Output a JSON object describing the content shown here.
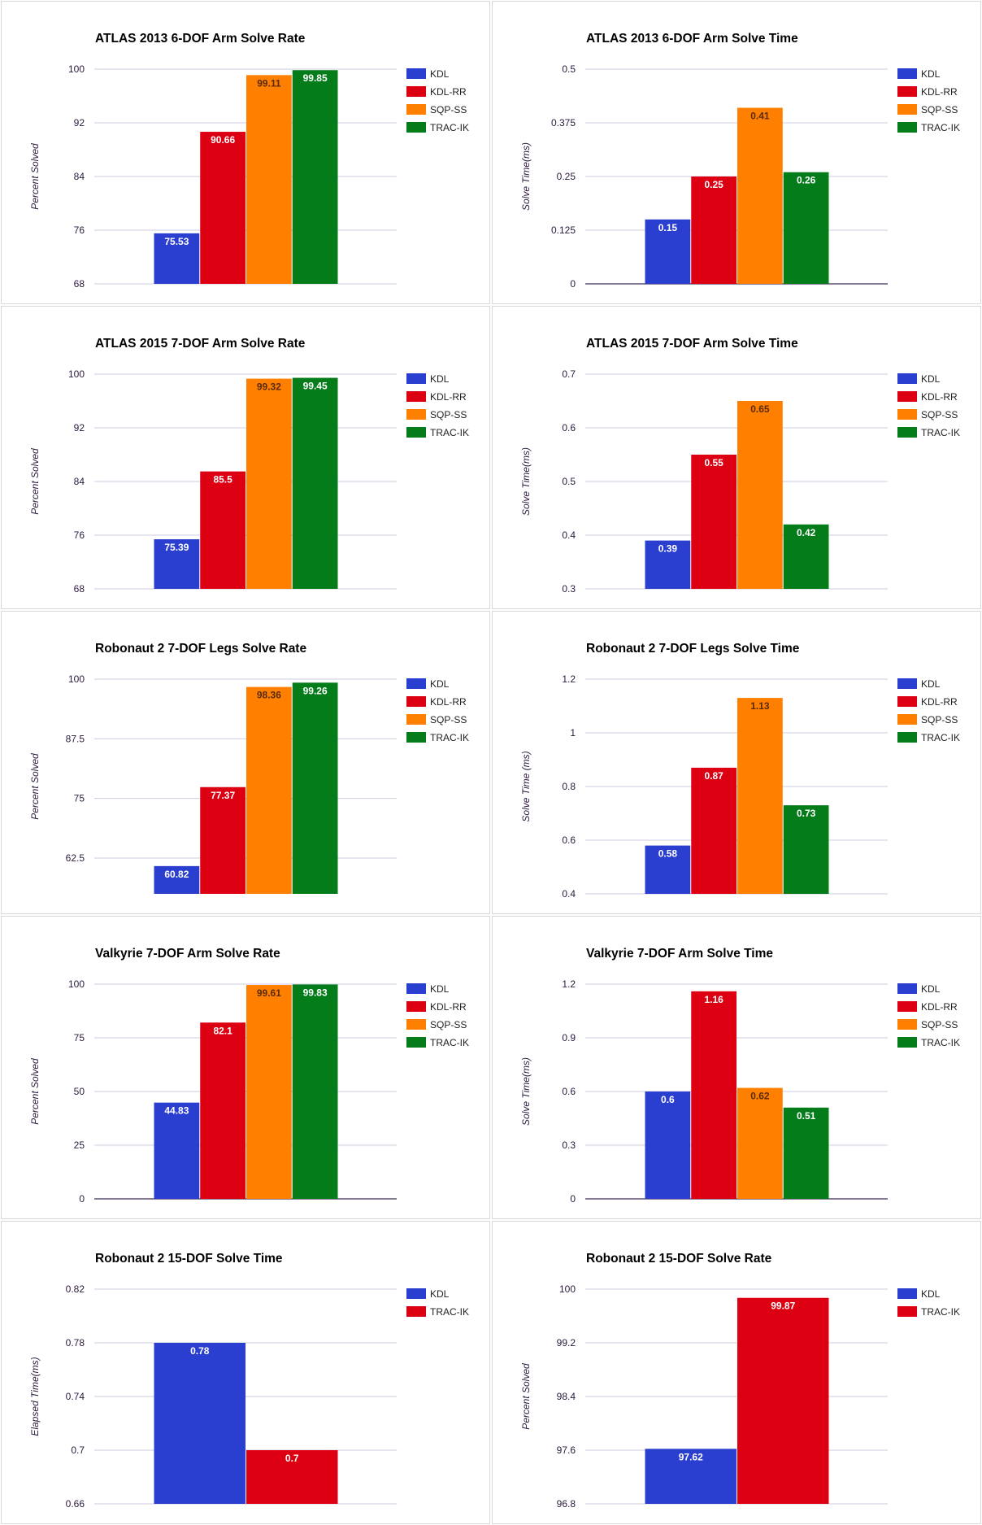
{
  "colors": {
    "KDL": "#2a3fd0",
    "KDL-RR": "#dc0012",
    "SQP-SS": "#ff8000",
    "TRAC-IK": "#057c1a",
    "grid": "#cfcbe0",
    "baseline": "#3a2a5a",
    "label_light": "#ffffff",
    "label_dark": "#5a2a0a"
  },
  "chart_data": [
    {
      "type": "bar",
      "title": "ATLAS 2013 6-DOF Arm Solve Rate",
      "xlabel": "",
      "ylabel": "Percent Solved",
      "ylim": [
        68,
        100
      ],
      "yticks": [
        "68",
        "76",
        "84",
        "92",
        "100"
      ],
      "grid": true,
      "legend": "right",
      "series": [
        {
          "name": "KDL",
          "values": [
            75.53
          ],
          "label": "75.53"
        },
        {
          "name": "KDL-RR",
          "values": [
            90.66
          ],
          "label": "90.66"
        },
        {
          "name": "SQP-SS",
          "values": [
            99.11
          ],
          "label": "99.11"
        },
        {
          "name": "TRAC-IK",
          "values": [
            99.85
          ],
          "label": "99.85"
        }
      ]
    },
    {
      "type": "bar",
      "title": "ATLAS 2013 6-DOF Arm Solve Time",
      "xlabel": "",
      "ylabel": "Solve Time(ms)",
      "ylim": [
        0,
        0.5
      ],
      "yticks": [
        "0",
        "0.125",
        "0.25",
        "0.375",
        "0.5"
      ],
      "grid": true,
      "legend": "right",
      "series": [
        {
          "name": "KDL",
          "values": [
            0.15
          ],
          "label": "0.15"
        },
        {
          "name": "KDL-RR",
          "values": [
            0.25
          ],
          "label": "0.25"
        },
        {
          "name": "SQP-SS",
          "values": [
            0.41
          ],
          "label": "0.41"
        },
        {
          "name": "TRAC-IK",
          "values": [
            0.26
          ],
          "label": "0.26"
        }
      ]
    },
    {
      "type": "bar",
      "title": "ATLAS 2015 7-DOF Arm Solve Rate",
      "xlabel": "",
      "ylabel": "Percent Solved",
      "ylim": [
        68,
        100
      ],
      "yticks": [
        "68",
        "76",
        "84",
        "92",
        "100"
      ],
      "grid": true,
      "legend": "right",
      "series": [
        {
          "name": "KDL",
          "values": [
            75.39
          ],
          "label": "75.39"
        },
        {
          "name": "KDL-RR",
          "values": [
            85.5
          ],
          "label": "85.5"
        },
        {
          "name": "SQP-SS",
          "values": [
            99.32
          ],
          "label": "99.32"
        },
        {
          "name": "TRAC-IK",
          "values": [
            99.45
          ],
          "label": "99.45"
        }
      ]
    },
    {
      "type": "bar",
      "title": "ATLAS 2015 7-DOF Arm Solve Time",
      "xlabel": "",
      "ylabel": "Solve Time(ms)",
      "ylim": [
        0.3,
        0.7
      ],
      "yticks": [
        "0.3",
        "0.4",
        "0.5",
        "0.6",
        "0.7"
      ],
      "grid": true,
      "legend": "right",
      "series": [
        {
          "name": "KDL",
          "values": [
            0.39
          ],
          "label": "0.39"
        },
        {
          "name": "KDL-RR",
          "values": [
            0.55
          ],
          "label": "0.55"
        },
        {
          "name": "SQP-SS",
          "values": [
            0.65
          ],
          "label": "0.65"
        },
        {
          "name": "TRAC-IK",
          "values": [
            0.42
          ],
          "label": "0.42"
        }
      ]
    },
    {
      "type": "bar",
      "title": "Robonaut 2 7-DOF Legs Solve Rate",
      "xlabel": "",
      "ylabel": "Percent Solved",
      "ylim": [
        55,
        100
      ],
      "yticks": [
        "62.5",
        "75",
        "87.5",
        "100"
      ],
      "ytick_values": [
        62.5,
        75,
        87.5,
        100
      ],
      "grid": true,
      "legend": "right",
      "series": [
        {
          "name": "KDL",
          "values": [
            60.82
          ],
          "label": "60.82"
        },
        {
          "name": "KDL-RR",
          "values": [
            77.37
          ],
          "label": "77.37"
        },
        {
          "name": "SQP-SS",
          "values": [
            98.36
          ],
          "label": "98.36"
        },
        {
          "name": "TRAC-IK",
          "values": [
            99.26
          ],
          "label": "99.26"
        }
      ]
    },
    {
      "type": "bar",
      "title": "Robonaut 2 7-DOF Legs Solve Time",
      "xlabel": "",
      "ylabel": "Solve Time (ms)",
      "ylim": [
        0.4,
        1.2
      ],
      "yticks": [
        "0.4",
        "0.6",
        "0.8",
        "1",
        "1.2"
      ],
      "grid": true,
      "legend": "right",
      "series": [
        {
          "name": "KDL",
          "values": [
            0.58
          ],
          "label": "0.58"
        },
        {
          "name": "KDL-RR",
          "values": [
            0.87
          ],
          "label": "0.87"
        },
        {
          "name": "SQP-SS",
          "values": [
            1.13
          ],
          "label": "1.13"
        },
        {
          "name": "TRAC-IK",
          "values": [
            0.73
          ],
          "label": "0.73"
        }
      ]
    },
    {
      "type": "bar",
      "title": "Valkyrie 7-DOF Arm Solve Rate",
      "xlabel": "",
      "ylabel": "Percent Solved",
      "ylim": [
        0,
        100
      ],
      "yticks": [
        "0",
        "25",
        "50",
        "75",
        "100"
      ],
      "grid": true,
      "legend": "right",
      "series": [
        {
          "name": "KDL",
          "values": [
            44.83
          ],
          "label": "44.83"
        },
        {
          "name": "KDL-RR",
          "values": [
            82.1
          ],
          "label": "82.1"
        },
        {
          "name": "SQP-SS",
          "values": [
            99.61
          ],
          "label": "99.61"
        },
        {
          "name": "TRAC-IK",
          "values": [
            99.83
          ],
          "label": "99.83"
        }
      ]
    },
    {
      "type": "bar",
      "title": "Valkyrie 7-DOF Arm Solve Time",
      "xlabel": "",
      "ylabel": "Solve Time(ms)",
      "ylim": [
        0,
        1.2
      ],
      "yticks": [
        "0",
        "0.3",
        "0.6",
        "0.9",
        "1.2"
      ],
      "grid": true,
      "legend": "right",
      "series": [
        {
          "name": "KDL",
          "values": [
            0.6
          ],
          "label": "0.6"
        },
        {
          "name": "KDL-RR",
          "values": [
            1.16
          ],
          "label": "1.16"
        },
        {
          "name": "SQP-SS",
          "values": [
            0.62
          ],
          "label": "0.62"
        },
        {
          "name": "TRAC-IK",
          "values": [
            0.51
          ],
          "label": "0.51"
        }
      ]
    },
    {
      "type": "bar",
      "title": "Robonaut 2 15-DOF Solve Time",
      "xlabel": "",
      "ylabel": "Elapsed Time(ms)",
      "ylim": [
        0.66,
        0.82
      ],
      "yticks": [
        "0.66",
        "0.7",
        "0.74",
        "0.78",
        "0.82"
      ],
      "grid": true,
      "legend": "right",
      "series": [
        {
          "name": "KDL",
          "values": [
            0.78
          ],
          "label": "0.78",
          "color": "#2a3fd0"
        },
        {
          "name": "TRAC-IK",
          "values": [
            0.7
          ],
          "label": "0.7",
          "color": "#dc0012"
        }
      ]
    },
    {
      "type": "bar",
      "title": "Robonaut 2 15-DOF Solve Rate",
      "xlabel": "",
      "ylabel": "Percent Solved",
      "ylim": [
        96.8,
        100
      ],
      "yticks": [
        "96.8",
        "97.6",
        "98.4",
        "99.2",
        "100"
      ],
      "grid": true,
      "legend": "right",
      "series": [
        {
          "name": "KDL",
          "values": [
            97.62
          ],
          "label": "97.62",
          "color": "#2a3fd0"
        },
        {
          "name": "TRAC-IK",
          "values": [
            99.87
          ],
          "label": "99.87",
          "color": "#dc0012"
        }
      ]
    }
  ]
}
